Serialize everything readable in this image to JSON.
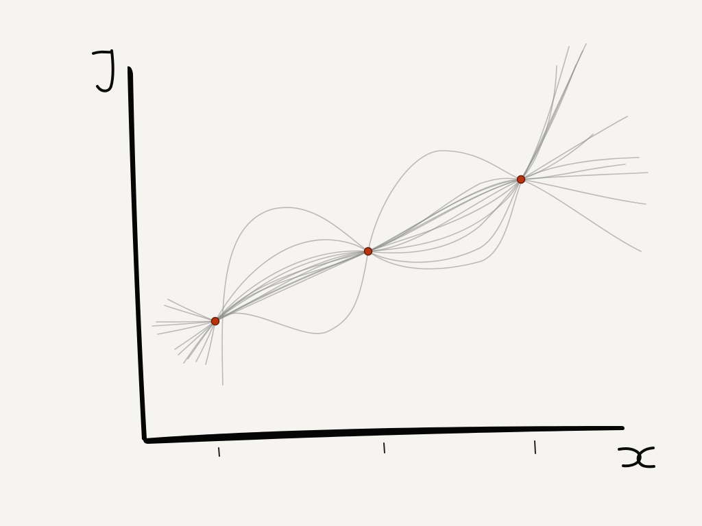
{
  "diagram": {
    "axes": {
      "x_letter": "x",
      "y_letter": "y",
      "x_tick_count": 3
    },
    "observed_points": [
      {
        "name": "point-1"
      },
      {
        "name": "point-2"
      },
      {
        "name": "point-3"
      }
    ],
    "sample_curve_count": 12,
    "colors": {
      "background": "#f5f4f0",
      "axes": "#050505",
      "curves": "#8a8a8a",
      "points": "#b8360f"
    }
  }
}
